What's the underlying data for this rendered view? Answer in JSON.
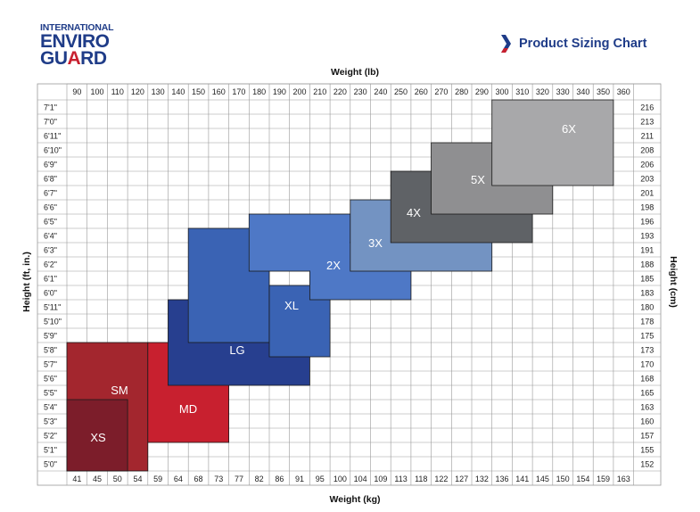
{
  "brand": {
    "logo_line1": "INTERNATIONAL",
    "logo_line2": "ENVIRO",
    "logo_line3": "GUARD",
    "chart_title": "Product Sizing Chart",
    "icon": "chevron-right-icon",
    "title_color": "#1f3c88"
  },
  "chart_data": {
    "type": "heatmap",
    "title": "Product Sizing Chart",
    "xlabel_top": "Weight (lb)",
    "xlabel_bottom": "Weight (kg)",
    "ylabel_left": "Height (ft, in.)",
    "ylabel_right": "Height (cm)",
    "weights_lb": [
      "90",
      "100",
      "110",
      "120",
      "130",
      "140",
      "150",
      "160",
      "170",
      "180",
      "190",
      "200",
      "210",
      "220",
      "230",
      "240",
      "250",
      "260",
      "270",
      "280",
      "290",
      "300",
      "310",
      "320",
      "330",
      "340",
      "350",
      "360"
    ],
    "weights_kg": [
      "41",
      "45",
      "50",
      "54",
      "59",
      "64",
      "68",
      "73",
      "77",
      "82",
      "86",
      "91",
      "95",
      "100",
      "104",
      "109",
      "113",
      "118",
      "122",
      "127",
      "132",
      "136",
      "141",
      "145",
      "150",
      "154",
      "159",
      "163"
    ],
    "heights_ft": [
      "7'1\"",
      "7'0\"",
      "6'11\"",
      "6'10\"",
      "6'9\"",
      "6'8\"",
      "6'7\"",
      "6'6\"",
      "6'5\"",
      "6'4\"",
      "6'3\"",
      "6'2\"",
      "6'1\"",
      "6'0\"",
      "5'11\"",
      "5'10\"",
      "5'9\"",
      "5'8\"",
      "5'7\"",
      "5'6\"",
      "5'5\"",
      "5'4\"",
      "5'3\"",
      "5'2\"",
      "5'1\"",
      "5'0\""
    ],
    "heights_cm": [
      "216",
      "213",
      "211",
      "208",
      "206",
      "203",
      "201",
      "198",
      "196",
      "193",
      "191",
      "188",
      "185",
      "183",
      "180",
      "178",
      "175",
      "173",
      "170",
      "168",
      "165",
      "163",
      "160",
      "157",
      "155",
      "152"
    ],
    "sizes": [
      {
        "label": "SM",
        "color": "#a3262e",
        "rects": [
          {
            "lb": [
              90,
              130
            ],
            "height": [
              "5'0\"",
              "5'8\""
            ]
          }
        ]
      },
      {
        "label": "XS",
        "color": "#7c1d2a",
        "rects": [
          {
            "lb": [
              90,
              120
            ],
            "height": [
              "5'0\"",
              "5'4\""
            ]
          }
        ]
      },
      {
        "label": "MD",
        "color": "#c8202f",
        "rects": [
          {
            "lb": [
              130,
              170
            ],
            "height": [
              "5'2\"",
              "5'8\""
            ]
          }
        ]
      },
      {
        "label": "LG",
        "color": "#273f8f",
        "rects": [
          {
            "lb": [
              140,
              210
            ],
            "height": [
              "5'6\"",
              "5'11\""
            ]
          }
        ]
      },
      {
        "label": "XL",
        "color": "#3a63b4",
        "rects": [
          {
            "lb": [
              150,
              190
            ],
            "height": [
              "5'9\"",
              "6'4\""
            ]
          },
          {
            "lb": [
              190,
              220
            ],
            "height": [
              "5'8\"",
              "6'0\""
            ]
          }
        ]
      },
      {
        "label": "2X",
        "color": "#4e78c6",
        "rects": [
          {
            "lb": [
              180,
              230
            ],
            "height": [
              "6'2\"",
              "6'5\""
            ]
          },
          {
            "lb": [
              210,
              260
            ],
            "height": [
              "6'0\"",
              "6'3\""
            ]
          }
        ]
      },
      {
        "label": "3X",
        "color": "#7393c2",
        "rects": [
          {
            "lb": [
              230,
              300
            ],
            "height": [
              "6'2\"",
              "6'6\""
            ]
          }
        ]
      },
      {
        "label": "4X",
        "color": "#5f6266",
        "rects": [
          {
            "lb": [
              250,
              320
            ],
            "height": [
              "6'4\"",
              "6'8\""
            ]
          }
        ]
      },
      {
        "label": "5X",
        "color": "#8f8f91",
        "rects": [
          {
            "lb": [
              270,
              330
            ],
            "height": [
              "6'6\"",
              "6'10\""
            ]
          }
        ]
      },
      {
        "label": "6X",
        "color": "#a8a8aa",
        "rects": [
          {
            "lb": [
              300,
              360
            ],
            "height": [
              "6'8\"",
              "7'1\""
            ]
          }
        ]
      }
    ]
  }
}
